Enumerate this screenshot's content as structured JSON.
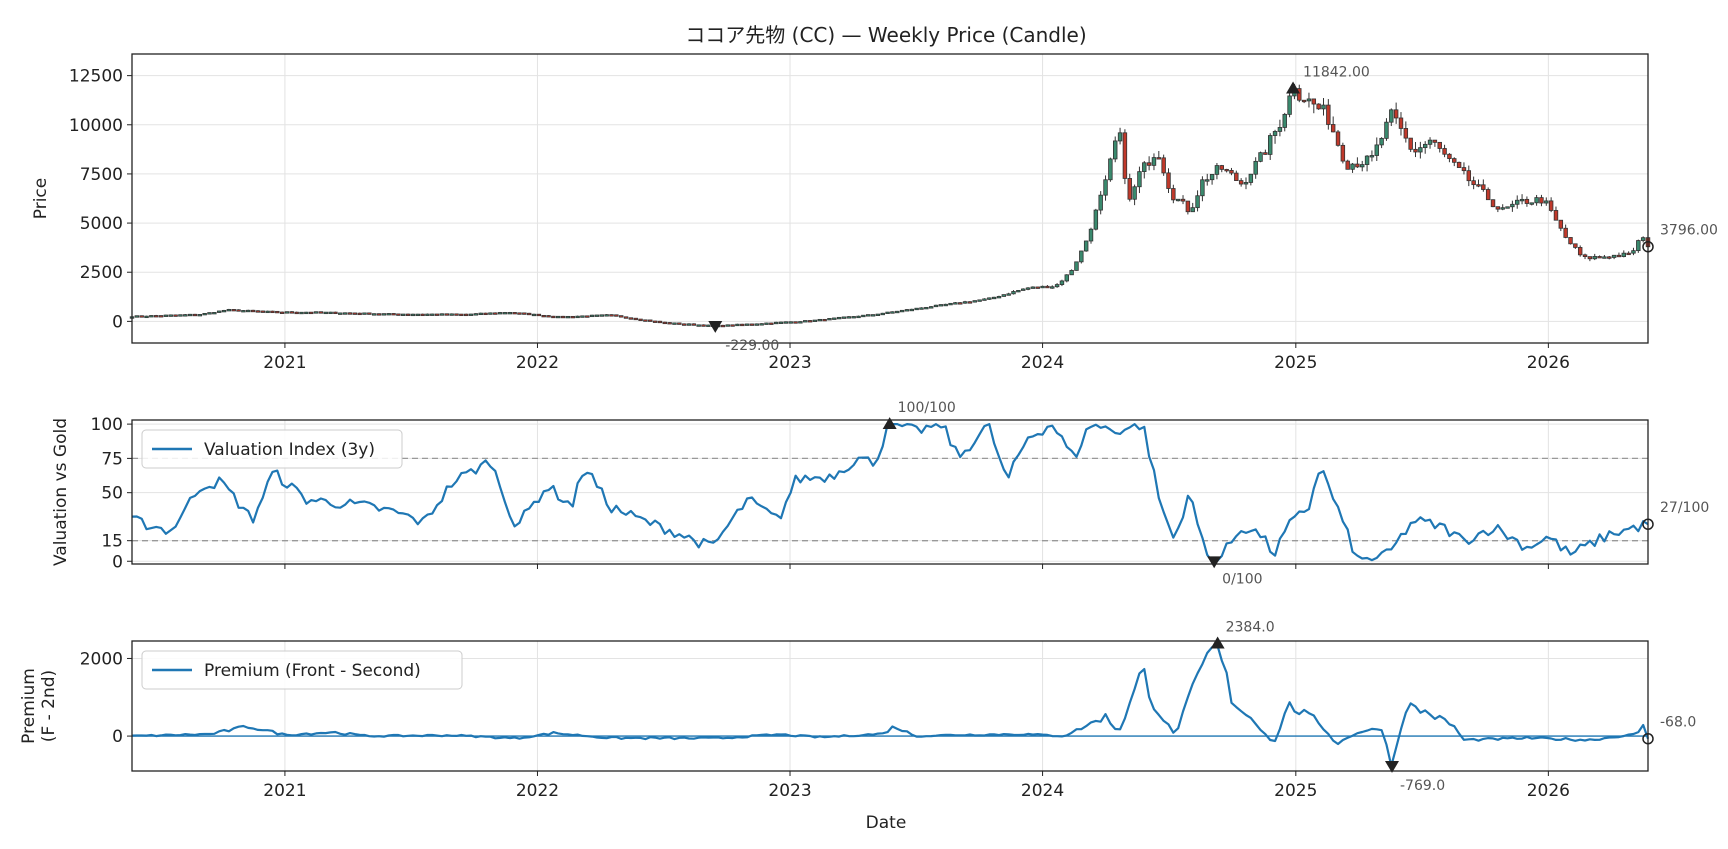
{
  "chart_data": [
    {
      "type": "candlestick",
      "panel": "price",
      "title": "ココア先物 (CC) — Weekly Price (Candle)",
      "xlabel": "",
      "ylabel": "Price",
      "x_range": [
        "2020-05-25",
        "2026-05-25"
      ],
      "ylim": [
        -1100,
        13600
      ],
      "yticks": [
        0,
        2500,
        5000,
        7500,
        10000,
        12500
      ],
      "xticks": [
        {
          "date": "2021-01-01",
          "label": "2021"
        },
        {
          "date": "2022-01-01",
          "label": "2022"
        },
        {
          "date": "2023-01-01",
          "label": "2023"
        },
        {
          "date": "2024-01-01",
          "label": "2024"
        },
        {
          "date": "2025-01-01",
          "label": "2025"
        },
        {
          "date": "2026-01-01",
          "label": "2026"
        }
      ],
      "grid": true,
      "colors": {
        "up": "#3a8a6e",
        "down": "#c0392b",
        "wick": "#333333"
      },
      "close_anchors": [
        [
          "2020-05-25",
          260
        ],
        [
          "2020-09-01",
          360
        ],
        [
          "2020-10-10",
          590
        ],
        [
          "2020-12-20",
          480
        ],
        [
          "2021-02-15",
          470
        ],
        [
          "2021-06-01",
          380
        ],
        [
          "2021-09-20",
          360
        ],
        [
          "2021-11-20",
          470
        ],
        [
          "2022-02-01",
          230
        ],
        [
          "2022-04-15",
          330
        ],
        [
          "2022-07-01",
          -60
        ],
        [
          "2022-09-15",
          -229
        ],
        [
          "2022-12-01",
          -80
        ],
        [
          "2023-02-01",
          40
        ],
        [
          "2023-05-01",
          350
        ],
        [
          "2023-08-01",
          800
        ],
        [
          "2023-10-15",
          1150
        ],
        [
          "2023-12-10",
          1700
        ],
        [
          "2024-01-20",
          1800
        ],
        [
          "2024-02-10",
          2500
        ],
        [
          "2024-03-01",
          3800
        ],
        [
          "2024-04-01",
          7000
        ],
        [
          "2024-04-20",
          9800
        ],
        [
          "2024-05-05",
          6000
        ],
        [
          "2024-05-20",
          7500
        ],
        [
          "2024-06-15",
          8800
        ],
        [
          "2024-07-05",
          6500
        ],
        [
          "2024-08-01",
          5600
        ],
        [
          "2024-08-20",
          7200
        ],
        [
          "2024-09-15",
          7800
        ],
        [
          "2024-10-15",
          7000
        ],
        [
          "2024-11-15",
          8500
        ],
        [
          "2024-12-10",
          10200
        ],
        [
          "2024-12-28",
          11842
        ],
        [
          "2025-01-20",
          11200
        ],
        [
          "2025-02-15",
          10500
        ],
        [
          "2025-03-15",
          8000
        ],
        [
          "2025-04-20",
          8200
        ],
        [
          "2025-05-20",
          10500
        ],
        [
          "2025-06-20",
          8600
        ],
        [
          "2025-07-15",
          9200
        ],
        [
          "2025-08-20",
          7800
        ],
        [
          "2025-09-20",
          6800
        ],
        [
          "2025-10-25",
          5600
        ],
        [
          "2025-11-25",
          6100
        ],
        [
          "2025-12-25",
          6200
        ],
        [
          "2026-01-25",
          4300
        ],
        [
          "2026-02-20",
          3200
        ],
        [
          "2026-03-20",
          3300
        ],
        [
          "2026-04-30",
          3400
        ],
        [
          "2026-05-15",
          4300
        ],
        [
          "2026-05-25",
          3796
        ]
      ],
      "annotations": [
        {
          "date": "2024-12-28",
          "value": 11842.0,
          "label": "11842.00",
          "marker": "max"
        },
        {
          "date": "2022-09-15",
          "value": -229.0,
          "label": "-229.00",
          "marker": "min"
        },
        {
          "date": "2026-05-25",
          "value": 3796.0,
          "label": "3796.00",
          "marker": "last"
        }
      ]
    },
    {
      "type": "line",
      "panel": "valuation",
      "xlabel": "",
      "ylabel": "Valuation vs Gold",
      "ylim": [
        -2,
        103
      ],
      "yticks": [
        0,
        15,
        50,
        75,
        100
      ],
      "hlines": [
        15,
        75
      ],
      "grid": true,
      "legend_placement": "upper-left",
      "series": [
        {
          "name": "Valuation Index (3y)",
          "color": "#1f77b4",
          "anchors": [
            [
              "2020-05-25",
              30
            ],
            [
              "2020-07-20",
              22
            ],
            [
              "2020-09-01",
              55
            ],
            [
              "2020-10-01",
              58
            ],
            [
              "2020-11-15",
              30
            ],
            [
              "2020-12-15",
              65
            ],
            [
              "2021-02-01",
              45
            ],
            [
              "2021-05-01",
              40
            ],
            [
              "2021-06-15",
              35
            ],
            [
              "2021-07-20",
              28
            ],
            [
              "2021-09-01",
              58
            ],
            [
              "2021-10-25",
              73
            ],
            [
              "2021-12-01",
              25
            ],
            [
              "2022-01-15",
              55
            ],
            [
              "2022-02-20",
              40
            ],
            [
              "2022-03-10",
              70
            ],
            [
              "2022-04-15",
              40
            ],
            [
              "2022-06-01",
              30
            ],
            [
              "2022-07-15",
              22
            ],
            [
              "2022-09-10",
              10
            ],
            [
              "2022-11-01",
              45
            ],
            [
              "2022-12-15",
              30
            ],
            [
              "2023-01-10",
              60
            ],
            [
              "2023-03-01",
              62
            ],
            [
              "2023-04-10",
              75
            ],
            [
              "2023-05-01",
              72
            ],
            [
              "2023-06-01",
              100
            ],
            [
              "2023-07-01",
              95
            ],
            [
              "2023-08-10",
              100
            ],
            [
              "2023-09-01",
              75
            ],
            [
              "2023-10-15",
              100
            ],
            [
              "2023-11-10",
              58
            ],
            [
              "2023-12-10",
              90
            ],
            [
              "2024-01-15",
              100
            ],
            [
              "2024-02-15",
              75
            ],
            [
              "2024-03-10",
              100
            ],
            [
              "2024-04-15",
              95
            ],
            [
              "2024-05-25",
              100
            ],
            [
              "2024-06-20",
              40
            ],
            [
              "2024-07-10",
              15
            ],
            [
              "2024-07-30",
              50
            ],
            [
              "2024-08-25",
              5
            ],
            [
              "2024-09-10",
              0
            ],
            [
              "2024-10-15",
              25
            ],
            [
              "2024-11-10",
              20
            ],
            [
              "2024-12-01",
              5
            ],
            [
              "2024-12-20",
              25
            ],
            [
              "2025-01-20",
              40
            ],
            [
              "2025-02-05",
              70
            ],
            [
              "2025-03-01",
              40
            ],
            [
              "2025-04-01",
              0
            ],
            [
              "2025-05-15",
              5
            ],
            [
              "2025-06-20",
              30
            ],
            [
              "2025-08-01",
              25
            ],
            [
              "2025-09-01",
              15
            ],
            [
              "2025-10-15",
              25
            ],
            [
              "2025-12-01",
              10
            ],
            [
              "2026-01-01",
              18
            ],
            [
              "2026-02-01",
              5
            ],
            [
              "2026-03-01",
              12
            ],
            [
              "2026-04-01",
              20
            ],
            [
              "2026-05-25",
              27
            ]
          ]
        }
      ],
      "annotations": [
        {
          "date": "2023-05-25",
          "value": 100,
          "label": "100/100",
          "marker": "max"
        },
        {
          "date": "2024-09-05",
          "value": 0,
          "label": "0/100",
          "marker": "min"
        },
        {
          "date": "2026-05-25",
          "value": 27,
          "label": "27/100",
          "marker": "last"
        }
      ]
    },
    {
      "type": "line",
      "panel": "premium",
      "xlabel": "Date",
      "ylabel": "Premium\n(F - 2nd)",
      "ylim": [
        -900,
        2450
      ],
      "yticks": [
        0,
        2000
      ],
      "hlines": [
        0
      ],
      "grid": true,
      "legend_placement": "upper-left",
      "series": [
        {
          "name": "Premium (Front - Second)",
          "color": "#1f77b4",
          "anchors": [
            [
              "2020-05-25",
              0
            ],
            [
              "2020-09-15",
              50
            ],
            [
              "2020-11-10",
              250
            ],
            [
              "2021-01-01",
              30
            ],
            [
              "2021-03-10",
              100
            ],
            [
              "2021-05-01",
              0
            ],
            [
              "2021-09-01",
              20
            ],
            [
              "2021-12-01",
              -60
            ],
            [
              "2022-01-25",
              80
            ],
            [
              "2022-04-15",
              -50
            ],
            [
              "2022-09-15",
              -60
            ],
            [
              "2022-12-15",
              40
            ],
            [
              "2023-02-15",
              -30
            ],
            [
              "2023-05-15",
              60
            ],
            [
              "2023-06-01",
              250
            ],
            [
              "2023-07-01",
              0
            ],
            [
              "2023-09-01",
              30
            ],
            [
              "2023-12-01",
              50
            ],
            [
              "2024-02-01",
              0
            ],
            [
              "2024-04-01",
              500
            ],
            [
              "2024-04-20",
              100
            ],
            [
              "2024-05-25",
              1700
            ],
            [
              "2024-06-10",
              800
            ],
            [
              "2024-07-10",
              20
            ],
            [
              "2024-08-01",
              1000
            ],
            [
              "2024-08-25",
              2000
            ],
            [
              "2024-09-10",
              2384
            ],
            [
              "2024-10-01",
              900
            ],
            [
              "2024-11-01",
              400
            ],
            [
              "2024-12-01",
              -200
            ],
            [
              "2024-12-20",
              800
            ],
            [
              "2025-02-01",
              400
            ],
            [
              "2025-03-01",
              -200
            ],
            [
              "2025-04-01",
              100
            ],
            [
              "2025-05-05",
              200
            ],
            [
              "2025-05-20",
              -769
            ],
            [
              "2025-06-10",
              800
            ],
            [
              "2025-07-10",
              600
            ],
            [
              "2025-08-15",
              300
            ],
            [
              "2025-09-01",
              -100
            ],
            [
              "2025-10-15",
              -80
            ],
            [
              "2025-12-01",
              -50
            ],
            [
              "2026-03-01",
              -100
            ],
            [
              "2026-05-10",
              50
            ],
            [
              "2026-05-18",
              300
            ],
            [
              "2026-05-25",
              -68
            ]
          ]
        }
      ],
      "annotations": [
        {
          "date": "2024-09-10",
          "value": 2384.0,
          "label": "2384.0",
          "marker": "max"
        },
        {
          "date": "2025-05-20",
          "value": -769.0,
          "label": "-769.0",
          "marker": "min"
        },
        {
          "date": "2026-05-25",
          "value": -68.0,
          "label": "-68.0",
          "marker": "last"
        }
      ]
    }
  ]
}
